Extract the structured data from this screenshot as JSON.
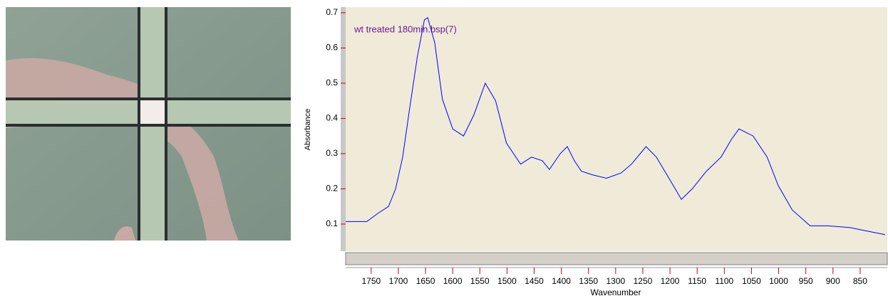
{
  "chart_data": {
    "type": "line",
    "annotation": "wt treated 180min.bsp(7)",
    "xlabel": "Wavenumber",
    "ylabel": "Absorbance",
    "x": [
      1797,
      1758,
      1738,
      1718,
      1705,
      1692,
      1679,
      1665,
      1652,
      1646,
      1633,
      1619,
      1600,
      1580,
      1561,
      1540,
      1521,
      1501,
      1475,
      1455,
      1435,
      1422,
      1402,
      1389,
      1376,
      1363,
      1343,
      1317,
      1290,
      1271,
      1244,
      1225,
      1198,
      1179,
      1159,
      1133,
      1106,
      1087,
      1073,
      1047,
      1021,
      1001,
      975,
      942,
      909,
      869,
      837,
      804
    ],
    "series": [
      {
        "color": "#0000ff",
        "values": [
          0.107,
          0.107,
          0.13,
          0.15,
          0.2,
          0.29,
          0.43,
          0.575,
          0.68,
          0.686,
          0.615,
          0.455,
          0.37,
          0.35,
          0.41,
          0.5,
          0.45,
          0.33,
          0.27,
          0.29,
          0.28,
          0.255,
          0.3,
          0.32,
          0.28,
          0.25,
          0.24,
          0.23,
          0.245,
          0.27,
          0.32,
          0.29,
          0.22,
          0.17,
          0.2,
          0.25,
          0.29,
          0.34,
          0.37,
          0.35,
          0.29,
          0.21,
          0.14,
          0.095,
          0.095,
          0.09,
          0.08,
          0.07
        ]
      }
    ],
    "xlim": [
      1797,
      800
    ],
    "xticks": [
      1750,
      1700,
      1650,
      1600,
      1550,
      1500,
      1450,
      1400,
      1350,
      1300,
      1250,
      1200,
      1150,
      1100,
      1050,
      1000,
      950,
      900,
      850
    ],
    "ylim": [
      0.025,
      0.716
    ],
    "yticks": [
      0.1,
      0.2,
      0.3,
      0.4,
      0.5,
      0.6,
      0.7
    ]
  }
}
